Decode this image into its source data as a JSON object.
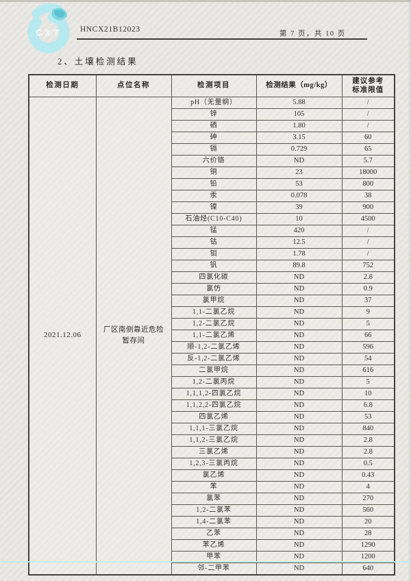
{
  "header": {
    "logo_text": "CXT",
    "report_code": "HNCX21B12023",
    "page_info": "第 7 页，共 10 页"
  },
  "section_title": "2、土壤检测结果",
  "colors": {
    "logo_cyan": "#b7e9f1",
    "logo_leaf": "#7fd6e2",
    "paper": "#e9e7e2",
    "table_border": "#5a5650",
    "footer_line": "#c7ebf1"
  },
  "table": {
    "columns": [
      "检测日期",
      "点位名称",
      "检测项目",
      "检测结果（mg/kg）",
      "建议参考标准限值"
    ],
    "date": "2021.12.06",
    "location": "厂区南侧靠近危险暂存间",
    "rows": [
      {
        "item": "pH（无量纲）",
        "result": "5.88",
        "limit": "/"
      },
      {
        "item": "锌",
        "result": "105",
        "limit": "/"
      },
      {
        "item": "硒",
        "result": "1.80",
        "limit": "/"
      },
      {
        "item": "砷",
        "result": "3.15",
        "limit": "60"
      },
      {
        "item": "镉",
        "result": "0.729",
        "limit": "65"
      },
      {
        "item": "六价铬",
        "result": "ND",
        "limit": "5.7"
      },
      {
        "item": "铜",
        "result": "23",
        "limit": "18000"
      },
      {
        "item": "铅",
        "result": "53",
        "limit": "800"
      },
      {
        "item": "汞",
        "result": "0.078",
        "limit": "38"
      },
      {
        "item": "镍",
        "result": "39",
        "limit": "900"
      },
      {
        "item": "石油烃(C10-C40)",
        "result": "10",
        "limit": "4500"
      },
      {
        "item": "锰",
        "result": "420",
        "limit": "/"
      },
      {
        "item": "钴",
        "result": "12.5",
        "limit": "/"
      },
      {
        "item": "钼",
        "result": "1.78",
        "limit": "/"
      },
      {
        "item": "钒",
        "result": "89.8",
        "limit": "752"
      },
      {
        "item": "四氯化碳",
        "result": "ND",
        "limit": "2.8"
      },
      {
        "item": "氯仿",
        "result": "ND",
        "limit": "0.9"
      },
      {
        "item": "氯甲烷",
        "result": "ND",
        "limit": "37"
      },
      {
        "item": "1,1-二氯乙烷",
        "result": "ND",
        "limit": "9"
      },
      {
        "item": "1,2-二氯乙烷",
        "result": "ND",
        "limit": "5"
      },
      {
        "item": "1,1-二氯乙烯",
        "result": "ND",
        "limit": "66"
      },
      {
        "item": "顺-1,2-二氯乙烯",
        "result": "ND",
        "limit": "596"
      },
      {
        "item": "反-1,2-二氯乙烯",
        "result": "ND",
        "limit": "54"
      },
      {
        "item": "二氯甲烷",
        "result": "ND",
        "limit": "616"
      },
      {
        "item": "1,2-二氯丙烷",
        "result": "ND",
        "limit": "5"
      },
      {
        "item": "1,1,1,2-四氯乙烷",
        "result": "ND",
        "limit": "10"
      },
      {
        "item": "1,1,2,2-四氯乙烷",
        "result": "ND",
        "limit": "6.8"
      },
      {
        "item": "四氯乙烯",
        "result": "ND",
        "limit": "53"
      },
      {
        "item": "1,1,1-三氯乙烷",
        "result": "ND",
        "limit": "840"
      },
      {
        "item": "1,1,2-三氯乙烷",
        "result": "ND",
        "limit": "2.8"
      },
      {
        "item": "三氯乙烯",
        "result": "ND",
        "limit": "2.8"
      },
      {
        "item": "1,2,3-三氯丙烷",
        "result": "ND",
        "limit": "0.5"
      },
      {
        "item": "氯乙烯",
        "result": "ND",
        "limit": "0.43"
      },
      {
        "item": "苯",
        "result": "ND",
        "limit": "4"
      },
      {
        "item": "氯苯",
        "result": "ND",
        "limit": "270"
      },
      {
        "item": "1,2-二氯苯",
        "result": "ND",
        "limit": "560"
      },
      {
        "item": "1,4-二氯苯",
        "result": "ND",
        "limit": "20"
      },
      {
        "item": "乙苯",
        "result": "ND",
        "limit": "28"
      },
      {
        "item": "苯乙烯",
        "result": "ND",
        "limit": "1290"
      },
      {
        "item": "甲苯",
        "result": "ND",
        "limit": "1200"
      },
      {
        "item": "邻-二甲苯",
        "result": "ND",
        "limit": "640"
      }
    ]
  }
}
